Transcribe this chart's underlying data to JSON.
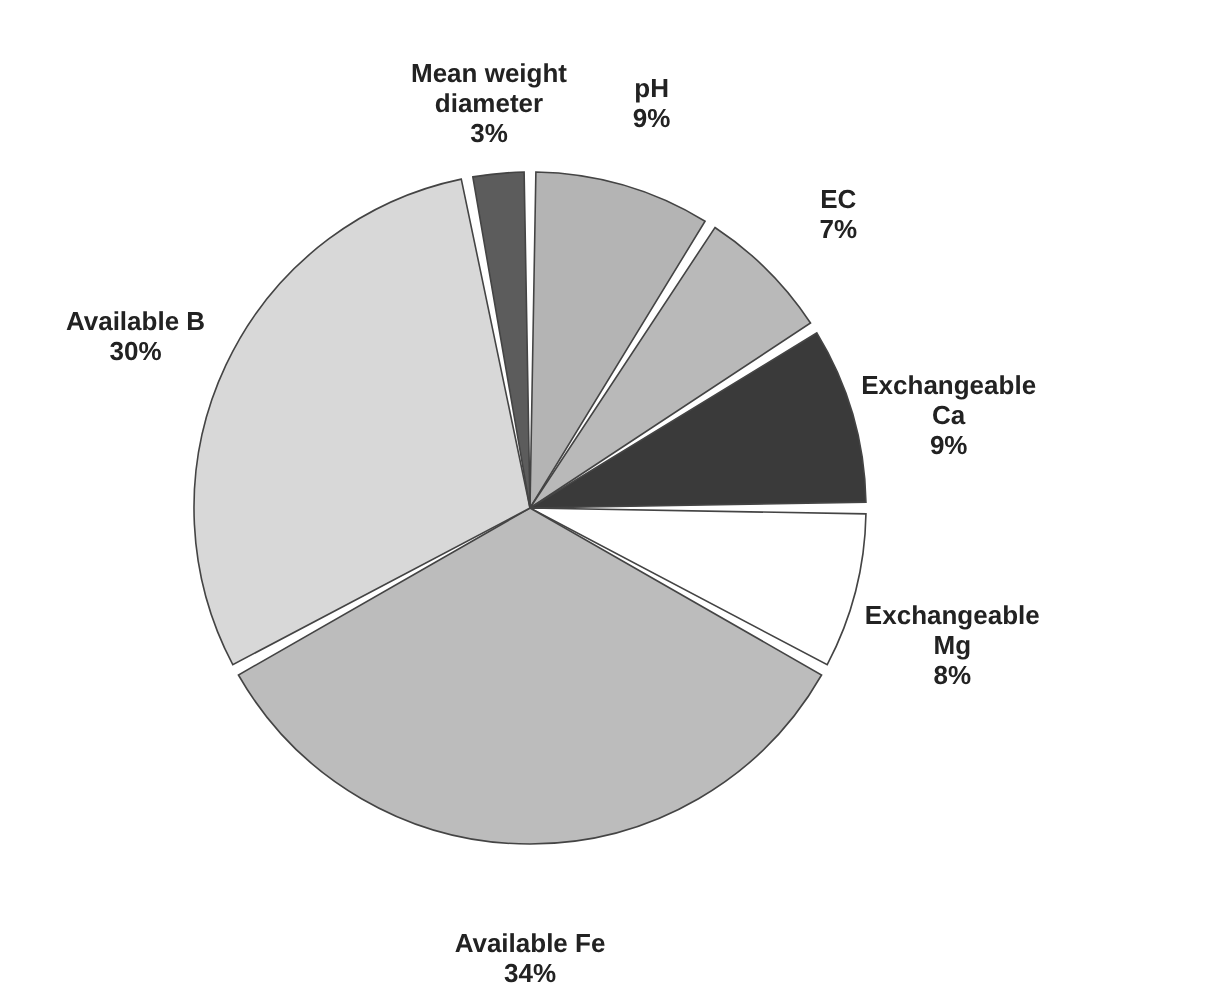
{
  "chart_data": {
    "type": "pie",
    "categories": [
      "pH",
      "EC",
      "Exchangeable Ca",
      "Exchangeable Mg",
      "Available Fe",
      "Available B",
      "Mean weight diameter"
    ],
    "values": [
      9,
      7,
      9,
      8,
      34,
      30,
      3
    ],
    "value_labels": [
      "9%",
      "7%",
      "9%",
      "8%",
      "34%",
      "30%",
      "3%"
    ],
    "colors": [
      "#b4b4b4",
      "#b9b9b9",
      "#3a3a3a",
      "#ffffff",
      "#bcbcbc",
      "#d8d8d8",
      "#5c5c5c"
    ]
  }
}
